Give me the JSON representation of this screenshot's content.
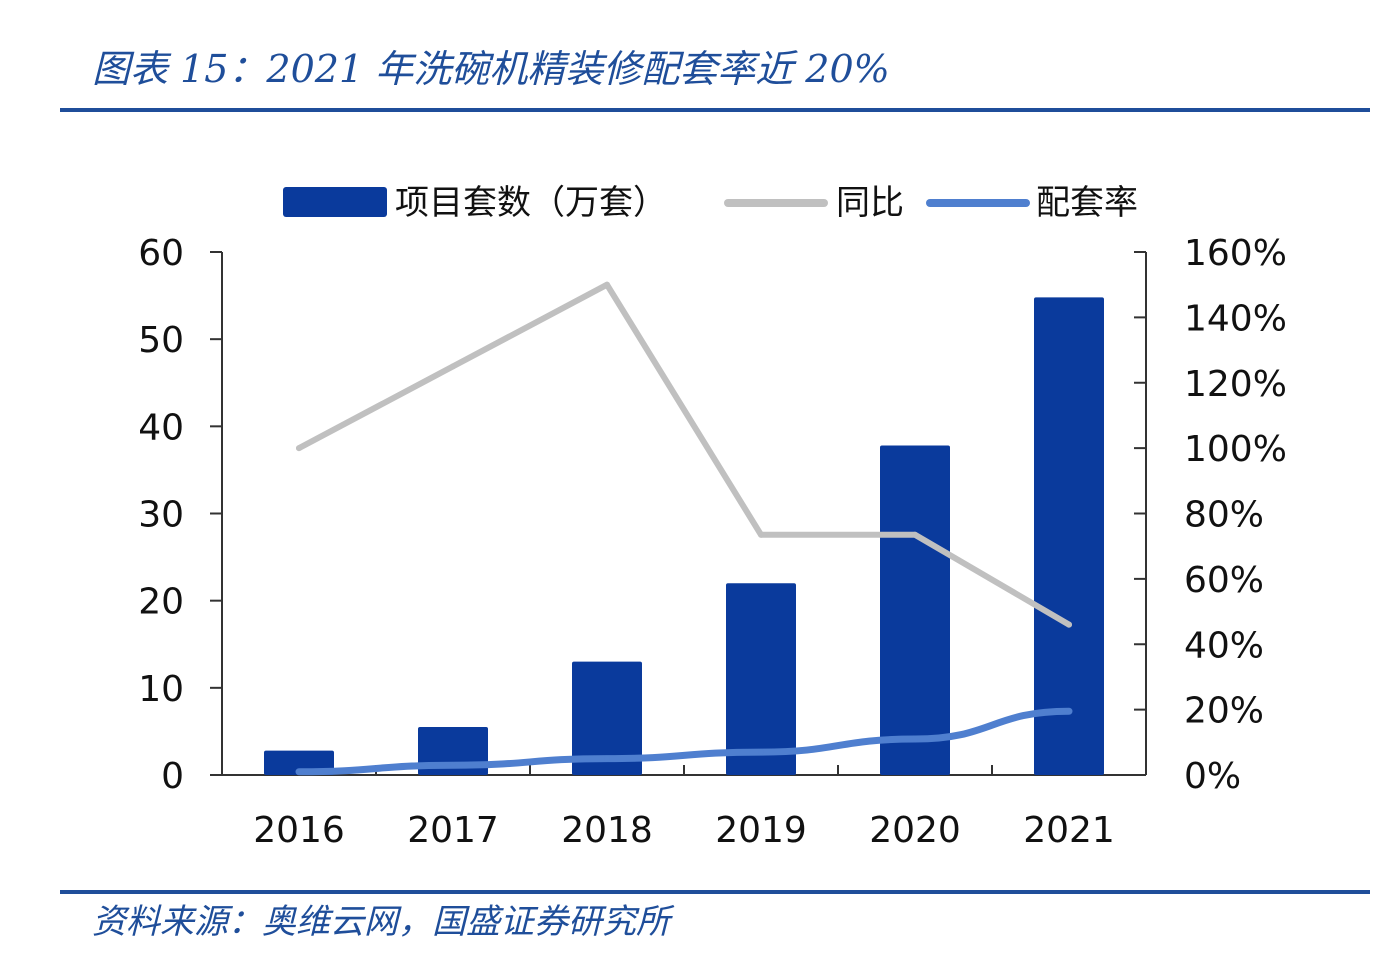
{
  "header": {
    "title": "图表 15：2021 年洗碗机精装修配套率近 20%"
  },
  "footer": {
    "source": "资料来源：奥维云网，国盛证券研究所"
  },
  "colors": {
    "bar": "#0a3a9c",
    "yoy": "#c0c0c0",
    "ratio": "#4f7fcf",
    "brand": "#1f4e9a"
  },
  "chart_data": {
    "type": "bar",
    "title": "",
    "categories": [
      "2016",
      "2017",
      "2018",
      "2019",
      "2020",
      "2021"
    ],
    "series": [
      {
        "name": "项目套数（万套）",
        "type": "bar",
        "axis": "left",
        "values": [
          2.8,
          5.5,
          13.0,
          22.0,
          37.8,
          54.8
        ]
      },
      {
        "name": "同比",
        "type": "line",
        "axis": "right",
        "values": [
          100,
          125,
          150,
          73.5,
          73.5,
          46
        ]
      },
      {
        "name": "配套率",
        "type": "line",
        "axis": "right",
        "values": [
          1,
          3,
          5,
          7,
          11,
          19.5
        ]
      }
    ],
    "y_left": {
      "ylim": [
        0,
        60
      ],
      "ticks": [
        "0",
        "10",
        "20",
        "30",
        "40",
        "50",
        "60"
      ]
    },
    "y_right": {
      "ylim": [
        0,
        160
      ],
      "ticks": [
        "0%",
        "20%",
        "40%",
        "60%",
        "80%",
        "100%",
        "120%",
        "140%",
        "160%"
      ]
    },
    "legend": {
      "placement": "top",
      "labels": [
        "项目套数（万套）",
        "同比",
        "配套率"
      ]
    }
  }
}
